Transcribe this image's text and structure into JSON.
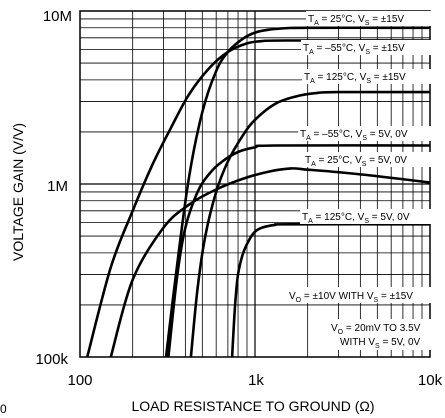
{
  "chart_data": {
    "type": "line",
    "title": "",
    "xlabel": "LOAD RESISTANCE TO GROUND (Ω)",
    "ylabel": "VOLTAGE GAIN (V/V)",
    "x_scale": "log",
    "y_scale": "log",
    "xlim": [
      100,
      10000
    ],
    "ylim": [
      100000,
      10000000
    ],
    "grid": true,
    "x_tick_labels": [
      {
        "value": 100,
        "label": "100"
      },
      {
        "value": 1000,
        "label": "1k"
      },
      {
        "value": 10000,
        "label": "10k"
      }
    ],
    "y_tick_labels": [
      {
        "value": 100000,
        "label": "100k"
      },
      {
        "value": 1000000,
        "label": "1M"
      },
      {
        "value": 10000000,
        "label": "10M"
      }
    ],
    "series": [
      {
        "name": "T_A = 25°C, V_S = ±15V",
        "x": [
          310,
          360,
          420,
          500,
          600,
          700,
          850,
          1000,
          1200,
          1500,
          2000,
          10000
        ],
        "y": [
          100000,
          350000,
          1100000,
          2600000,
          4500000,
          5800000,
          6900000,
          7500000,
          7800000,
          7950000,
          8000000,
          8000000
        ]
      },
      {
        "name": "T_A = –55°C, V_S = ±15V",
        "x": [
          110,
          150,
          200,
          260,
          330,
          420,
          550,
          700,
          900,
          1100,
          1500,
          10000
        ],
        "y": [
          100000,
          330000,
          700000,
          1300000,
          2100000,
          3300000,
          4700000,
          5800000,
          6500000,
          6700000,
          6750000,
          6750000
        ]
      },
      {
        "name": "T_A = 125°C, V_S = ±15V",
        "x": [
          430,
          470,
          520,
          600,
          700,
          850,
          1000,
          1300,
          1700,
          2200,
          3000,
          10000
        ],
        "y": [
          100000,
          250000,
          500000,
          900000,
          1350000,
          1900000,
          2350000,
          2900000,
          3200000,
          3350000,
          3400000,
          3400000
        ]
      },
      {
        "name": "T_A = –55°C, V_S = 5V, 0V",
        "x": [
          320,
          360,
          400,
          470,
          550,
          650,
          800,
          1000,
          1300,
          10000
        ],
        "y": [
          100000,
          300000,
          560000,
          900000,
          1150000,
          1350000,
          1530000,
          1630000,
          1670000,
          1670000
        ]
      },
      {
        "name": "T_A = 25°C, V_S = 5V, 0V",
        "x": [
          150,
          200,
          300,
          420,
          600,
          850,
          1200,
          1600,
          2000,
          3000,
          5000,
          10000
        ],
        "y": [
          100000,
          280000,
          560000,
          760000,
          930000,
          1070000,
          1180000,
          1230000,
          1210000,
          1170000,
          1110000,
          1020000
        ]
      },
      {
        "name": "T_A = 125°C, V_S = 5V, 0V",
        "x": [
          740,
          770,
          800,
          850,
          920,
          1000,
          1100,
          1300,
          1600,
          10000
        ],
        "y": [
          100000,
          200000,
          300000,
          390000,
          470000,
          530000,
          560000,
          580000,
          585000,
          585000
        ]
      }
    ],
    "annotations": [
      "V_O = ±10V WITH V_S = ±15V",
      "V_O = 20mV TO 3.5V WITH V_S = 5V, 0V"
    ]
  },
  "labels": {
    "s1": {
      "base": "T",
      "sub": "A",
      "mid": " = 25°C, V",
      "sub2": "S",
      "tail": " = ±15V"
    },
    "s2": {
      "base": "T",
      "sub": "A",
      "mid": " = –55°C, V",
      "sub2": "S",
      "tail": " = ±15V"
    },
    "s3": {
      "base": "T",
      "sub": "A",
      "mid": " = 125°C, V",
      "sub2": "S",
      "tail": " = ±15V"
    },
    "s4": {
      "base": "T",
      "sub": "A",
      "mid": " = –55°C, V",
      "sub2": "S",
      "tail": " = 5V, 0V"
    },
    "s5": {
      "base": "T",
      "sub": "A",
      "mid": " = 25°C, V",
      "sub2": "S",
      "tail": " = 5V, 0V"
    },
    "s6": {
      "base": "T",
      "sub": "A",
      "mid": " = 125°C, V",
      "sub2": "S",
      "tail": " = 5V, 0V"
    },
    "n1": {
      "base": "V",
      "sub": "O",
      "mid": " = ±10V WITH V",
      "sub2": "S",
      "tail": " = ±15V"
    },
    "n2_line1": "V",
    "n2_sub": "O",
    "n2_line1_tail": " = 20mV TO 3.5V",
    "n2_line2": "WITH V",
    "n2_line2_sub": "S",
    "n2_line2_tail": " = 5V, 0V"
  },
  "stray_mark": "0"
}
